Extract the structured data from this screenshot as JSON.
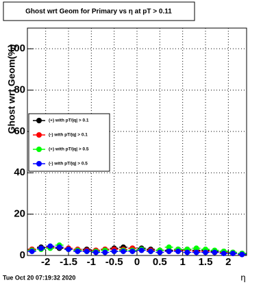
{
  "chart_data": {
    "type": "scatter",
    "title": "Ghost wrt Geom for Primary vs  η at pT > 0.11",
    "y_label": "Ghost wrt Geom(%)",
    "x_label": "η",
    "timestamp": "Tue Oct 20 07:19:32 2020",
    "xlim": [
      -2.4,
      2.4
    ],
    "ylim": [
      0,
      110
    ],
    "xticks": [
      -2,
      -1.5,
      -1,
      -0.5,
      0,
      0.5,
      1,
      1.5,
      2
    ],
    "yticks": [
      0,
      20,
      40,
      60,
      80,
      100
    ],
    "grid": true,
    "x": [
      -2.3,
      -2.1,
      -1.9,
      -1.7,
      -1.5,
      -1.3,
      -1.1,
      -0.9,
      -0.7,
      -0.5,
      -0.3,
      -0.1,
      0.1,
      0.3,
      0.5,
      0.7,
      0.9,
      1.1,
      1.3,
      1.5,
      1.7,
      1.9,
      2.1,
      2.3
    ],
    "series": [
      {
        "name": "(+) with pT/|q| > 0.1",
        "color": "#000000",
        "values": [
          3,
          4,
          4,
          3.5,
          3,
          2.5,
          3,
          2.5,
          3,
          3.5,
          4,
          3.5,
          3.5,
          3,
          2.5,
          2.5,
          3,
          3,
          2.5,
          2.5,
          2,
          2,
          1.5,
          1
        ]
      },
      {
        "name": "(-) with pT/|q| > 0.1",
        "color": "#ff0000",
        "values": [
          3,
          3.5,
          4,
          4,
          3.5,
          3,
          2.5,
          2.5,
          3,
          3,
          3,
          3.5,
          3,
          2.5,
          2.5,
          2,
          2.5,
          2.5,
          2,
          2,
          1.5,
          1.5,
          1,
          0.5
        ]
      },
      {
        "name": "(+) with pT/|q| > 0.5",
        "color": "#00ff00",
        "values": [
          2.5,
          3,
          3.5,
          5,
          3,
          2.5,
          2,
          2,
          2.5,
          2,
          2.5,
          2.5,
          3,
          2,
          2.5,
          4,
          3,
          3,
          3.5,
          3,
          2.5,
          2,
          1.5,
          1
        ]
      },
      {
        "name": "(-) with pT/|q| > 0.5",
        "color": "#0000ff",
        "values": [
          2,
          3.5,
          4.5,
          4,
          3,
          2,
          2,
          1.5,
          1.5,
          2,
          2,
          2,
          2.5,
          2,
          1.5,
          2,
          2,
          1.5,
          1.5,
          1.5,
          1.5,
          1,
          1,
          0.5
        ]
      }
    ]
  }
}
